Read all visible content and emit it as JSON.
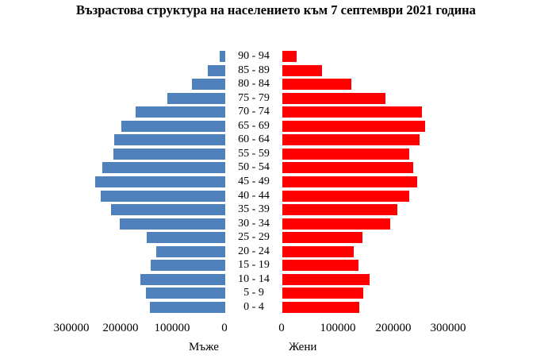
{
  "chart_data": {
    "type": "bar",
    "orientation": "horizontal",
    "subtype": "population-pyramid",
    "title": "Възрастова структура на населението към 7 септември 2021 година",
    "categories": [
      "90 - 94",
      "85 - 89",
      "80 - 84",
      "75 - 79",
      "70 - 74",
      "65 - 69",
      "60 - 64",
      "55 - 59",
      "50 - 54",
      "45 - 49",
      "40 - 44",
      "35 - 39",
      "30 - 34",
      "25 - 29",
      "20 - 24",
      "15 - 19",
      "10 - 14",
      "5 - 9",
      "0 - 4"
    ],
    "series": [
      {
        "name": "Мъже",
        "color": "#4F81BD",
        "side": "left",
        "values": [
          11000,
          34000,
          64000,
          111000,
          173000,
          200000,
          214000,
          215000,
          237000,
          250000,
          240000,
          220000,
          203000,
          151000,
          133000,
          144000,
          163000,
          153000,
          145000
        ]
      },
      {
        "name": "Жени",
        "color": "#FF0000",
        "side": "right",
        "values": [
          26000,
          71000,
          124000,
          186000,
          251000,
          257000,
          247000,
          229000,
          236000,
          243000,
          229000,
          207000,
          194000,
          144000,
          129000,
          137000,
          157000,
          146000,
          139000
        ]
      }
    ],
    "left_axis": {
      "label": "Мъже",
      "ticks": [
        "300000",
        "200000",
        "100000",
        "0"
      ],
      "range": [
        0,
        300000
      ],
      "reversed": true
    },
    "right_axis": {
      "label": "Жени",
      "ticks": [
        "0",
        "100000",
        "200000",
        "300000"
      ],
      "range": [
        0,
        300000
      ]
    },
    "grid": false,
    "legend": "none"
  }
}
